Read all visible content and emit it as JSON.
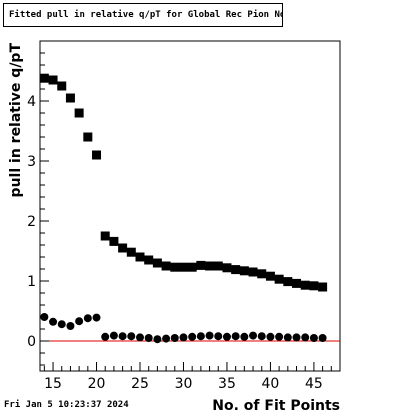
{
  "chart_data": {
    "type": "scatter",
    "title": "Fitted pull in relative q/pT  for Global Rec Pion NoHits",
    "xlabel": "No. of Fit Points",
    "ylabel": "pull in relative q/pT",
    "xlim": [
      13.5,
      48
    ],
    "ylim": [
      -0.5,
      5.0
    ],
    "x_ticks": [
      15,
      20,
      25,
      30,
      35,
      40,
      45
    ],
    "y_ticks": [
      0,
      1,
      2,
      3,
      4
    ],
    "reference_line": {
      "y": 0,
      "color": "#e00000"
    },
    "series": [
      {
        "marker": "square",
        "x": [
          14,
          15,
          16,
          17,
          18,
          19,
          20,
          21,
          22,
          23,
          24,
          25,
          26,
          27,
          28,
          29,
          30,
          31,
          32,
          33,
          34,
          35,
          36,
          37,
          38,
          39,
          40,
          41,
          42,
          43,
          44,
          45,
          46
        ],
        "values": [
          4.38,
          4.35,
          4.25,
          4.05,
          3.8,
          3.4,
          3.1,
          1.75,
          1.66,
          1.55,
          1.48,
          1.4,
          1.35,
          1.3,
          1.25,
          1.23,
          1.23,
          1.23,
          1.26,
          1.25,
          1.25,
          1.22,
          1.19,
          1.17,
          1.15,
          1.12,
          1.08,
          1.03,
          0.99,
          0.96,
          0.93,
          0.92,
          0.9
        ]
      },
      {
        "marker": "circle",
        "x": [
          14,
          15,
          16,
          17,
          18,
          19,
          20,
          21,
          22,
          23,
          24,
          25,
          26,
          27,
          28,
          29,
          30,
          31,
          32,
          33,
          34,
          35,
          36,
          37,
          38,
          39,
          40,
          41,
          42,
          43,
          44,
          45,
          46
        ],
        "values": [
          0.4,
          0.32,
          0.28,
          0.25,
          0.33,
          0.38,
          0.39,
          0.07,
          0.09,
          0.08,
          0.08,
          0.06,
          0.05,
          0.03,
          0.04,
          0.05,
          0.06,
          0.07,
          0.08,
          0.09,
          0.08,
          0.07,
          0.08,
          0.07,
          0.09,
          0.08,
          0.07,
          0.07,
          0.06,
          0.06,
          0.06,
          0.05,
          0.05
        ]
      }
    ]
  },
  "footer": {
    "date": "Fri Jan  5 10:23:37 2024"
  },
  "colors": {
    "marker": "#000000",
    "reference_line": "#e00000"
  }
}
